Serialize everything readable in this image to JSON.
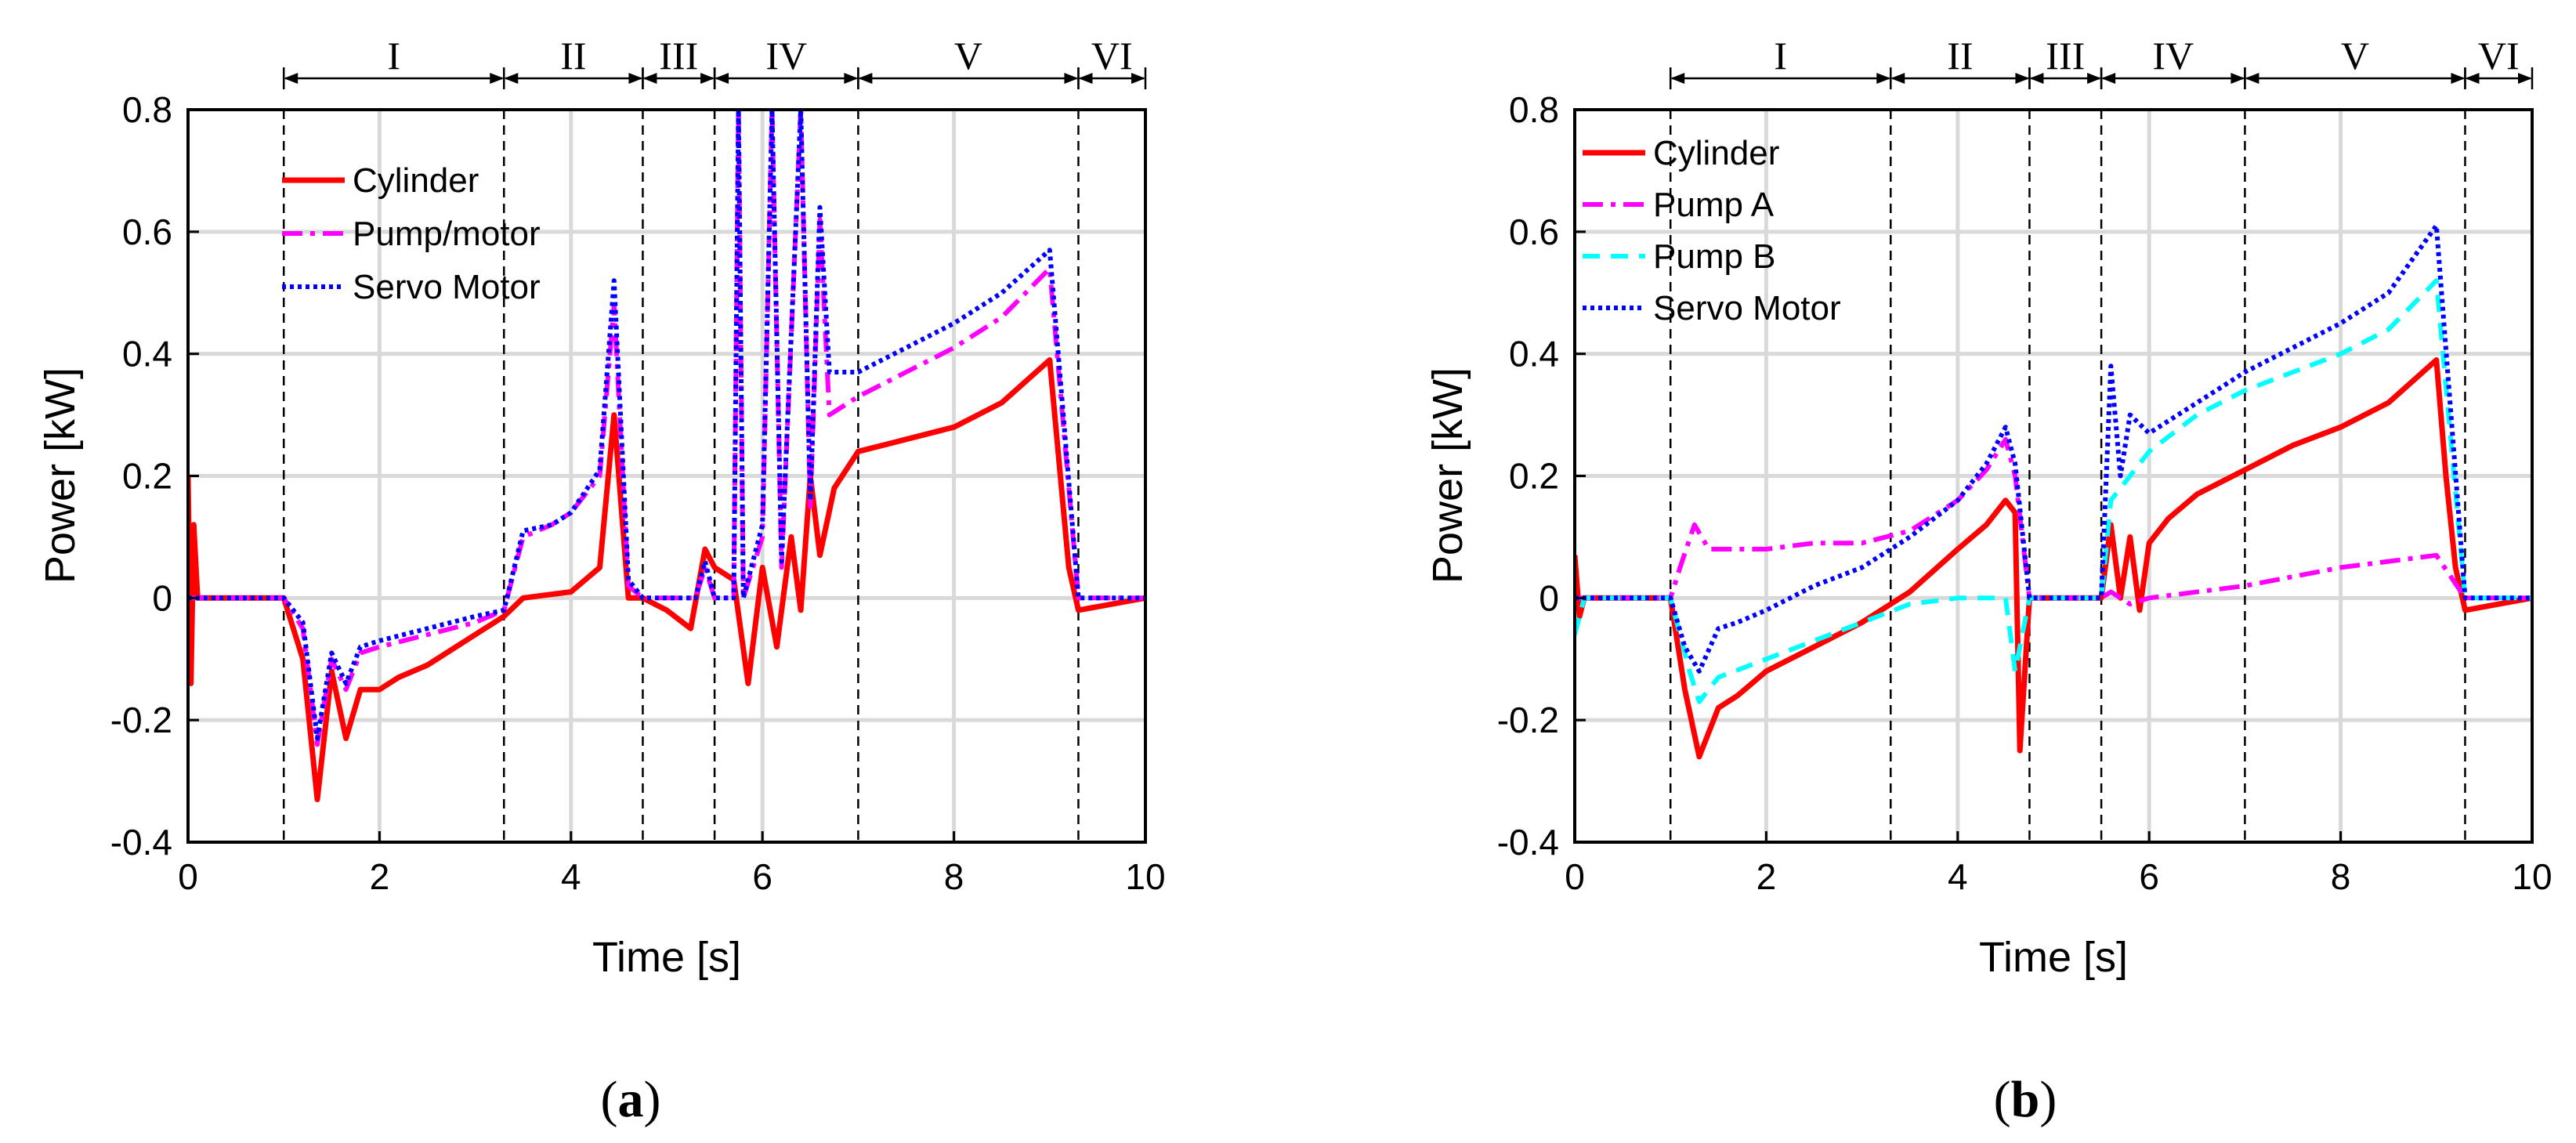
{
  "chart_data": [
    {
      "type": "line",
      "panel_label": "(a)",
      "label_parts": [
        "(",
        "a",
        ")"
      ],
      "xlabel": "Time [s]",
      "ylabel": "Power [kW]",
      "xlim": [
        0,
        10
      ],
      "ylim": [
        -0.4,
        0.8
      ],
      "xticks": [
        "0",
        "2",
        "4",
        "6",
        "8",
        "10"
      ],
      "yticks": [
        "-0.4",
        "-0.2",
        "0",
        "0.2",
        "0.4",
        "0.6",
        "0.8"
      ],
      "xtick_values": [
        0,
        2,
        4,
        6,
        8,
        10
      ],
      "ytick_values": [
        -0.4,
        -0.2,
        0,
        0.2,
        0.4,
        0.6,
        0.8
      ],
      "grid": true,
      "phase_boundaries": [
        1.0,
        3.3,
        4.75,
        5.5,
        7.0,
        9.3,
        10.0
      ],
      "phases": [
        "I",
        "II",
        "III",
        "IV",
        "V",
        "VI"
      ],
      "legend_position": "top-left",
      "series": [
        {
          "name": "Cylinder",
          "color": "#ff0000",
          "style": "solid",
          "x": [
            0,
            0.03,
            0.06,
            0.1,
            0.3,
            1.0,
            1.2,
            1.35,
            1.5,
            1.65,
            1.8,
            2.0,
            2.2,
            2.5,
            3.0,
            3.3,
            3.5,
            4.0,
            4.3,
            4.45,
            4.6,
            4.75,
            5.0,
            5.25,
            5.4,
            5.5,
            5.7,
            5.85,
            6.0,
            6.15,
            6.3,
            6.4,
            6.5,
            6.6,
            6.75,
            7.0,
            7.5,
            8.0,
            8.5,
            9.0,
            9.1,
            9.2,
            9.3,
            10.0
          ],
          "values": [
            0.2,
            -0.14,
            0.12,
            0.0,
            0.0,
            0.0,
            -0.1,
            -0.33,
            -0.12,
            -0.23,
            -0.15,
            -0.15,
            -0.13,
            -0.11,
            -0.06,
            -0.03,
            0.0,
            0.01,
            0.05,
            0.3,
            0.0,
            0.0,
            -0.02,
            -0.05,
            0.08,
            0.05,
            0.03,
            -0.14,
            0.05,
            -0.08,
            0.1,
            -0.02,
            0.2,
            0.07,
            0.18,
            0.24,
            0.26,
            0.28,
            0.32,
            0.39,
            0.22,
            0.05,
            -0.02,
            0.0
          ]
        },
        {
          "name": "Pump/motor",
          "color": "#ff00ff",
          "style": "dashdot",
          "x": [
            0,
            0.1,
            1.0,
            1.2,
            1.35,
            1.5,
            1.65,
            1.8,
            2.0,
            2.5,
            3.0,
            3.3,
            3.5,
            3.8,
            4.0,
            4.3,
            4.45,
            4.6,
            4.75,
            5.0,
            5.3,
            5.4,
            5.5,
            5.7,
            5.75,
            5.8,
            6.0,
            6.1,
            6.2,
            6.4,
            6.5,
            6.6,
            6.7,
            7.0,
            7.5,
            8.0,
            8.5,
            9.0,
            9.3,
            10.0
          ],
          "values": [
            0.0,
            0.0,
            0.0,
            -0.05,
            -0.24,
            -0.1,
            -0.15,
            -0.09,
            -0.08,
            -0.06,
            -0.04,
            -0.02,
            0.1,
            0.12,
            0.14,
            0.2,
            0.48,
            0.02,
            0.0,
            0.0,
            0.0,
            0.05,
            0.0,
            0.0,
            0.8,
            0.0,
            0.1,
            0.8,
            0.05,
            0.8,
            0.15,
            0.62,
            0.3,
            0.33,
            0.37,
            0.41,
            0.46,
            0.54,
            0.0,
            0.0
          ]
        },
        {
          "name": "Servo Motor",
          "color": "#0000ff",
          "style": "dotted",
          "x": [
            0,
            0.1,
            1.0,
            1.2,
            1.35,
            1.5,
            1.65,
            1.8,
            2.0,
            2.5,
            3.0,
            3.3,
            3.5,
            3.8,
            4.0,
            4.3,
            4.45,
            4.6,
            4.75,
            5.0,
            5.3,
            5.4,
            5.5,
            5.7,
            5.75,
            5.8,
            6.0,
            6.1,
            6.2,
            6.4,
            6.5,
            6.6,
            6.7,
            7.0,
            7.5,
            8.0,
            8.5,
            9.0,
            9.3,
            10.0
          ],
          "values": [
            0.0,
            0.0,
            0.0,
            -0.04,
            -0.23,
            -0.09,
            -0.14,
            -0.08,
            -0.07,
            -0.05,
            -0.03,
            -0.02,
            0.11,
            0.12,
            0.14,
            0.21,
            0.52,
            0.03,
            0.0,
            0.0,
            0.0,
            0.06,
            0.0,
            0.0,
            0.8,
            0.0,
            0.12,
            0.8,
            0.06,
            0.8,
            0.16,
            0.64,
            0.37,
            0.37,
            0.41,
            0.45,
            0.5,
            0.57,
            0.0,
            0.0
          ]
        }
      ]
    },
    {
      "type": "line",
      "panel_label": "(b)",
      "label_parts": [
        "(",
        "b",
        ")"
      ],
      "xlabel": "Time [s]",
      "ylabel": "Power [kW]",
      "xlim": [
        0,
        10
      ],
      "ylim": [
        -0.4,
        0.8
      ],
      "xticks": [
        "0",
        "2",
        "4",
        "6",
        "8",
        "10"
      ],
      "yticks": [
        "-0.4",
        "-0.2",
        "0",
        "0.2",
        "0.4",
        "0.6",
        "0.8"
      ],
      "xtick_values": [
        0,
        2,
        4,
        6,
        8,
        10
      ],
      "ytick_values": [
        -0.4,
        -0.2,
        0,
        0.2,
        0.4,
        0.6,
        0.8
      ],
      "grid": true,
      "phase_boundaries": [
        1.0,
        3.3,
        4.75,
        5.5,
        7.0,
        9.3,
        10.0
      ],
      "phases": [
        "I",
        "II",
        "III",
        "IV",
        "V",
        "VI"
      ],
      "legend_position": "top-left",
      "series": [
        {
          "name": "Cylinder",
          "color": "#ff0000",
          "style": "solid",
          "x": [
            0,
            0.05,
            0.1,
            1.0,
            1.15,
            1.3,
            1.5,
            1.7,
            2.0,
            2.5,
            3.0,
            3.5,
            4.0,
            4.3,
            4.5,
            4.6,
            4.65,
            4.75,
            5.0,
            5.5,
            5.6,
            5.7,
            5.8,
            5.9,
            6.0,
            6.2,
            6.5,
            7.0,
            7.5,
            8.0,
            8.5,
            9.0,
            9.1,
            9.2,
            9.3,
            10.0
          ],
          "values": [
            0.07,
            -0.03,
            0.0,
            0.0,
            -0.15,
            -0.26,
            -0.18,
            -0.16,
            -0.12,
            -0.08,
            -0.04,
            0.01,
            0.08,
            0.12,
            0.16,
            0.14,
            -0.25,
            0.0,
            0.0,
            0.0,
            0.12,
            0.0,
            0.1,
            -0.02,
            0.09,
            0.13,
            0.17,
            0.21,
            0.25,
            0.28,
            0.32,
            0.39,
            0.2,
            0.05,
            -0.02,
            0.0
          ]
        },
        {
          "name": "Pump A",
          "color": "#ff00ff",
          "style": "dashdot",
          "x": [
            0,
            1.0,
            1.1,
            1.25,
            1.4,
            2.0,
            2.5,
            3.0,
            3.5,
            4.0,
            4.3,
            4.5,
            4.6,
            4.75,
            5.5,
            5.6,
            5.8,
            6.0,
            7.0,
            8.0,
            8.5,
            9.0,
            9.3,
            10.0
          ],
          "values": [
            0.0,
            0.0,
            0.05,
            0.12,
            0.08,
            0.08,
            0.09,
            0.09,
            0.11,
            0.16,
            0.21,
            0.26,
            0.2,
            0.0,
            0.0,
            0.01,
            -0.01,
            0.0,
            0.02,
            0.05,
            0.06,
            0.07,
            0.0,
            0.0
          ]
        },
        {
          "name": "Pump B",
          "color": "#00ffff",
          "style": "dashed",
          "x": [
            0,
            0.1,
            1.0,
            1.2,
            1.3,
            1.5,
            2.0,
            2.5,
            3.0,
            3.5,
            4.0,
            4.5,
            4.6,
            4.75,
            5.5,
            5.6,
            5.8,
            6.0,
            6.5,
            7.0,
            8.0,
            8.5,
            9.0,
            9.3,
            10.0
          ],
          "values": [
            -0.06,
            0.0,
            0.0,
            -0.12,
            -0.17,
            -0.13,
            -0.1,
            -0.07,
            -0.04,
            -0.01,
            0.0,
            0.0,
            -0.12,
            0.0,
            0.0,
            0.16,
            0.2,
            0.24,
            0.3,
            0.34,
            0.4,
            0.44,
            0.52,
            0.0,
            0.0
          ]
        },
        {
          "name": "Servo Motor",
          "color": "#0000ff",
          "style": "dotted",
          "x": [
            0,
            0.1,
            1.0,
            1.15,
            1.3,
            1.5,
            1.7,
            2.0,
            2.5,
            3.0,
            3.5,
            4.0,
            4.3,
            4.5,
            4.6,
            4.75,
            5.5,
            5.6,
            5.7,
            5.8,
            6.0,
            6.5,
            7.0,
            8.0,
            8.5,
            9.0,
            9.3,
            10.0
          ],
          "values": [
            0.0,
            0.0,
            0.0,
            -0.08,
            -0.12,
            -0.05,
            -0.04,
            -0.02,
            0.02,
            0.05,
            0.1,
            0.16,
            0.22,
            0.28,
            0.22,
            0.0,
            0.0,
            0.38,
            0.2,
            0.3,
            0.27,
            0.32,
            0.37,
            0.45,
            0.5,
            0.61,
            0.0,
            0.0
          ]
        }
      ]
    }
  ]
}
